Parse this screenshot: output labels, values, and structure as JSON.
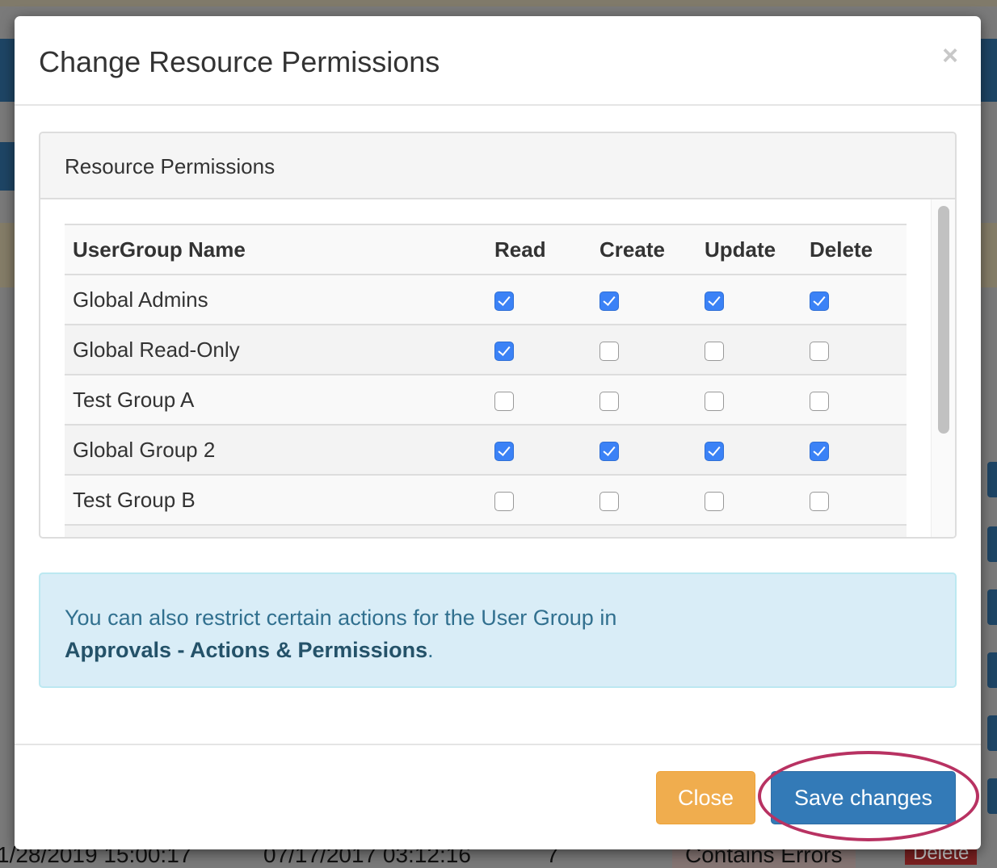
{
  "modal": {
    "title": "Change Resource Permissions",
    "close_icon": "×",
    "panel_title": "Resource Permissions",
    "table": {
      "headers": [
        "UserGroup Name",
        "Read",
        "Create",
        "Update",
        "Delete"
      ],
      "rows": [
        {
          "name": "Global Admins",
          "perms": [
            true,
            true,
            true,
            true
          ]
        },
        {
          "name": "Global Read-Only",
          "perms": [
            true,
            false,
            false,
            false
          ]
        },
        {
          "name": "Test Group A",
          "perms": [
            false,
            false,
            false,
            false
          ]
        },
        {
          "name": "Global Group 2",
          "perms": [
            true,
            true,
            true,
            true
          ]
        },
        {
          "name": "Test Group B",
          "perms": [
            false,
            false,
            false,
            false
          ]
        }
      ]
    },
    "alert": {
      "text": "You can also restrict certain actions for the User Group in",
      "link": "Approvals - Actions & Permissions",
      "suffix": "."
    },
    "buttons": {
      "close": "Close",
      "save": "Save changes"
    }
  },
  "background": {
    "row": {
      "date1": "1/28/2019 15:00:17",
      "date2": "07/17/2017 03:12:16",
      "count": "7",
      "status": "Contains Errors",
      "delete": "Delete"
    }
  },
  "colors": {
    "primary": "#337ab7",
    "warning": "#f0ad4e",
    "info_bg": "#d9edf7",
    "highlight_ring": "#b83262",
    "checkbox": "#3b82f6"
  }
}
